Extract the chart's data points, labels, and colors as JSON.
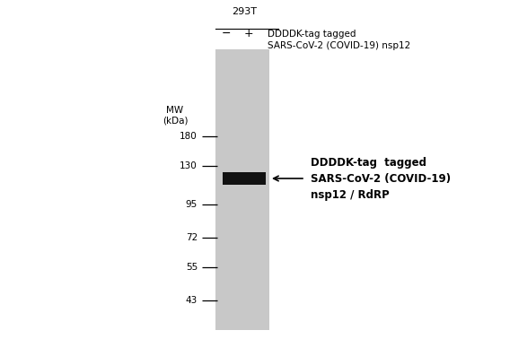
{
  "fig_width": 5.87,
  "fig_height": 3.78,
  "dpi": 100,
  "background_color": "#ffffff",
  "gel_color": "#c8c8c8",
  "band_color": "#111111",
  "mw_markers": [
    180,
    130,
    95,
    72,
    55,
    43
  ],
  "header_293T": "293T",
  "lane_neg_label": "−",
  "lane_pos_label": "+",
  "col_header_text": "DDDDK-tag tagged\nSARS-CoV-2 (COVID-19) nsp12",
  "mw_title": "MW\n(kDa)",
  "annotation_text": "DDDDK-tag  tagged\nSARS-CoV-2 (COVID-19)\nnsp12 / RdRP",
  "font_size_header": 7.5,
  "font_size_mw": 7.5,
  "font_size_annotation": 8.5,
  "font_size_lane": 9,
  "font_size_mw_title": 7.5,
  "font_size_293T": 8
}
